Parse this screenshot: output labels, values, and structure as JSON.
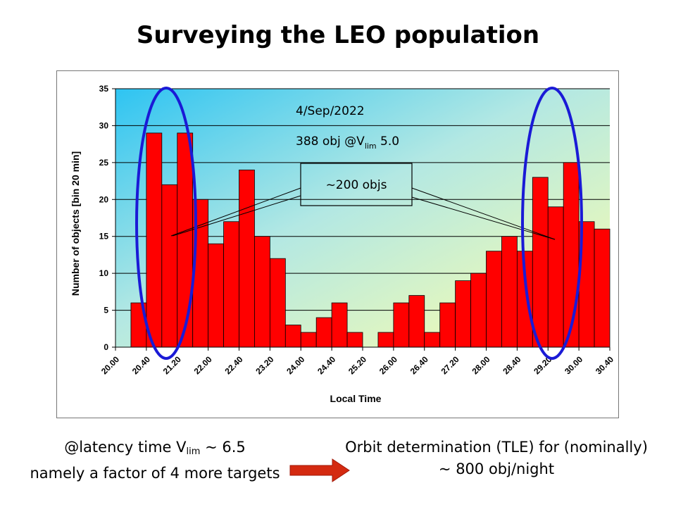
{
  "title": "Surveying the LEO population",
  "chart_data": {
    "type": "bar",
    "xlabel": "Local Time",
    "ylabel": "Number of objects [bin 20 min]",
    "ylim": [
      0,
      35
    ],
    "yticks": [
      0,
      5,
      10,
      15,
      20,
      25,
      30,
      35
    ],
    "grid": true,
    "x_tick_labels": [
      "20.00",
      "20.40",
      "21.20",
      "22.00",
      "22.40",
      "23.20",
      "24.00",
      "24.40",
      "25.20",
      "26.00",
      "26.40",
      "27.20",
      "28.00",
      "28.40",
      "29.20",
      "30.00",
      "30.40"
    ],
    "values": [
      0,
      6,
      29,
      22,
      29,
      20,
      14,
      17,
      24,
      15,
      12,
      3,
      2,
      4,
      6,
      2,
      0,
      2,
      6,
      7,
      2,
      6,
      9,
      10,
      13,
      15,
      13,
      23,
      19,
      25,
      17,
      16
    ],
    "bar_color": "#ff0000",
    "annotations": {
      "date": "4/Sep/2022",
      "count_prefix": "388 obj @V",
      "count_sub": "lim",
      "count_suffix": " 5.0",
      "callout": "~200 objs"
    }
  },
  "footer": {
    "left_line1_prefix": "@latency time V",
    "left_line1_sub": "lim",
    "left_line1_suffix": " ~ 6.5",
    "left_line2": "namely a factor of 4 more targets",
    "right_line1": "Orbit determination (TLE) for (nominally)",
    "right_line2": "~ 800 obj/night"
  },
  "colors": {
    "ellipse": "#1a1ad6",
    "bar": "#ff0000",
    "arrow": "#d42a10"
  }
}
